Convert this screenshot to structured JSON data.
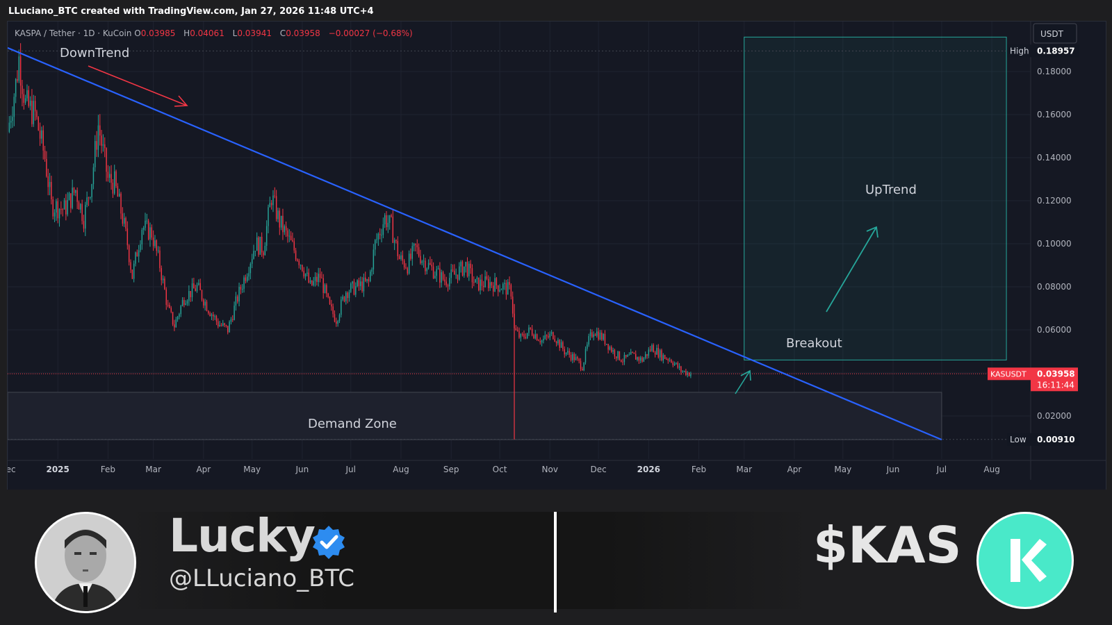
{
  "header": {
    "credit": "LLuciano_BTC created with TradingView.com, Jan 27, 2026 11:48 UTC+4"
  },
  "symbol": {
    "name": "KASPA / Tether · 1D · KuCoin",
    "open_label": "O",
    "open": "0.03985",
    "high_label": "H",
    "high": "0.04061",
    "low_label": "L",
    "low": "0.03941",
    "close_label": "C",
    "close": "0.03958",
    "change": "−0.00027 (−0.68%)"
  },
  "colors": {
    "up": "#26a69a",
    "down": "#f23645",
    "trend": "#2962ff",
    "zone": "#26a69a",
    "bg": "#151823"
  },
  "chart_data": {
    "type": "candlestick",
    "ylim": [
      0.0,
      0.2
    ],
    "y_scale": "linear",
    "y_ticks": [
      0.18,
      0.16,
      0.14,
      0.12,
      0.1,
      0.08,
      0.06,
      0.02
    ],
    "y_tick_labels": [
      "0.18000",
      "0.16000",
      "0.14000",
      "0.12000",
      "0.10000",
      "0.08000",
      "0.06000",
      "0.02000"
    ],
    "currency": "USDT",
    "x_ticks": [
      "Dec",
      "2025",
      "Feb",
      "Mar",
      "Apr",
      "May",
      "Jun",
      "Jul",
      "Aug",
      "Sep",
      "Oct",
      "Nov",
      "Dec",
      "2026",
      "Feb",
      "Mar",
      "Apr",
      "May",
      "Jun",
      "Jul",
      "Aug"
    ],
    "x_tick_bold": [
      "2025",
      "2026"
    ],
    "x_start": "2024-12-01",
    "x_end": "2026-08-25",
    "x_tick_dates": [
      "2024-12-01",
      "2025-01-01",
      "2025-02-01",
      "2025-03-01",
      "2025-04-01",
      "2025-05-01",
      "2025-06-01",
      "2025-07-01",
      "2025-08-01",
      "2025-09-01",
      "2025-10-01",
      "2025-11-01",
      "2025-12-01",
      "2026-01-01",
      "2026-02-01",
      "2026-03-01",
      "2026-04-01",
      "2026-05-01",
      "2026-06-01",
      "2026-07-01",
      "2026-08-01"
    ],
    "price_path": [
      [
        "2024-12-01",
        0.152
      ],
      [
        "2024-12-06",
        0.174
      ],
      [
        "2024-12-08",
        0.186
      ],
      [
        "2024-12-12",
        0.165
      ],
      [
        "2024-12-18",
        0.16
      ],
      [
        "2024-12-24",
        0.14
      ],
      [
        "2024-12-28",
        0.118
      ],
      [
        "2025-01-05",
        0.116
      ],
      [
        "2025-01-12",
        0.125
      ],
      [
        "2025-01-17",
        0.112
      ],
      [
        "2025-01-22",
        0.13
      ],
      [
        "2025-01-26",
        0.155
      ],
      [
        "2025-02-01",
        0.13
      ],
      [
        "2025-02-05",
        0.128
      ],
      [
        "2025-02-10",
        0.112
      ],
      [
        "2025-02-13",
        0.1
      ],
      [
        "2025-02-16",
        0.085
      ],
      [
        "2025-02-22",
        0.108
      ],
      [
        "2025-02-28",
        0.105
      ],
      [
        "2025-03-05",
        0.09
      ],
      [
        "2025-03-10",
        0.07
      ],
      [
        "2025-03-14",
        0.062
      ],
      [
        "2025-03-20",
        0.075
      ],
      [
        "2025-03-28",
        0.08
      ],
      [
        "2025-04-04",
        0.07
      ],
      [
        "2025-04-10",
        0.063
      ],
      [
        "2025-04-16",
        0.06
      ],
      [
        "2025-04-22",
        0.075
      ],
      [
        "2025-04-28",
        0.088
      ],
      [
        "2025-05-03",
        0.1
      ],
      [
        "2025-05-08",
        0.098
      ],
      [
        "2025-05-13",
        0.122
      ],
      [
        "2025-05-18",
        0.11
      ],
      [
        "2025-05-25",
        0.1
      ],
      [
        "2025-06-01",
        0.09
      ],
      [
        "2025-06-06",
        0.08
      ],
      [
        "2025-06-12",
        0.085
      ],
      [
        "2025-06-18",
        0.07
      ],
      [
        "2025-06-22",
        0.065
      ],
      [
        "2025-06-28",
        0.078
      ],
      [
        "2025-07-05",
        0.08
      ],
      [
        "2025-07-12",
        0.082
      ],
      [
        "2025-07-16",
        0.1
      ],
      [
        "2025-07-22",
        0.112
      ],
      [
        "2025-07-26",
        0.108
      ],
      [
        "2025-07-31",
        0.093
      ],
      [
        "2025-08-05",
        0.09
      ],
      [
        "2025-08-10",
        0.098
      ],
      [
        "2025-08-15",
        0.092
      ],
      [
        "2025-08-22",
        0.087
      ],
      [
        "2025-08-28",
        0.083
      ],
      [
        "2025-09-04",
        0.086
      ],
      [
        "2025-09-10",
        0.09
      ],
      [
        "2025-09-16",
        0.081
      ],
      [
        "2025-09-24",
        0.082
      ],
      [
        "2025-10-03",
        0.08
      ],
      [
        "2025-10-08",
        0.078
      ],
      [
        "2025-10-10",
        0.06
      ],
      [
        "2025-10-14",
        0.056
      ],
      [
        "2025-10-20",
        0.06
      ],
      [
        "2025-10-27",
        0.055
      ],
      [
        "2025-11-03",
        0.058
      ],
      [
        "2025-11-10",
        0.05
      ],
      [
        "2025-11-16",
        0.047
      ],
      [
        "2025-11-21",
        0.043
      ],
      [
        "2025-11-25",
        0.055
      ],
      [
        "2025-11-28",
        0.06
      ],
      [
        "2025-12-04",
        0.056
      ],
      [
        "2025-12-10",
        0.05
      ],
      [
        "2025-12-16",
        0.046
      ],
      [
        "2025-12-22",
        0.048
      ],
      [
        "2025-12-28",
        0.046
      ],
      [
        "2026-01-03",
        0.052
      ],
      [
        "2026-01-09",
        0.048
      ],
      [
        "2026-01-15",
        0.046
      ],
      [
        "2026-01-21",
        0.041
      ],
      [
        "2026-01-27",
        0.0396
      ]
    ],
    "series_high": {
      "label": "High",
      "value": "0.18957",
      "y": 0.18957
    },
    "series_low": {
      "label": "Low",
      "value": "0.00910",
      "y": 0.0091
    },
    "last_price": {
      "label": "KASUSDT",
      "value": "0.03958",
      "countdown": "16:11:44",
      "y": 0.03958
    },
    "trendline": {
      "from": [
        "2024-12-01",
        0.191
      ],
      "to": [
        "2026-07-01",
        0.009
      ]
    },
    "uptrend_zone": {
      "x0": "2026-03-01",
      "x1": "2026-08-10",
      "y0": 0.046,
      "y1": 0.196
    },
    "demand_zone": {
      "x0": "2024-12-01",
      "x1": "2026-07-01",
      "y0": 0.009,
      "y1": 0.031
    },
    "wick_oct10_low": 0.0091,
    "annotations": {
      "downtrend": "DownTrend",
      "uptrend": "UpTrend",
      "breakout": "Breakout",
      "demand_zone": "Demand Zone"
    }
  },
  "footer": {
    "name": "Lucky",
    "handle": "@LLuciano_BTC",
    "ticker": "$KAS",
    "verified_icon": "verified-badge-icon",
    "logo_icon": "kaspa-logo-icon"
  }
}
